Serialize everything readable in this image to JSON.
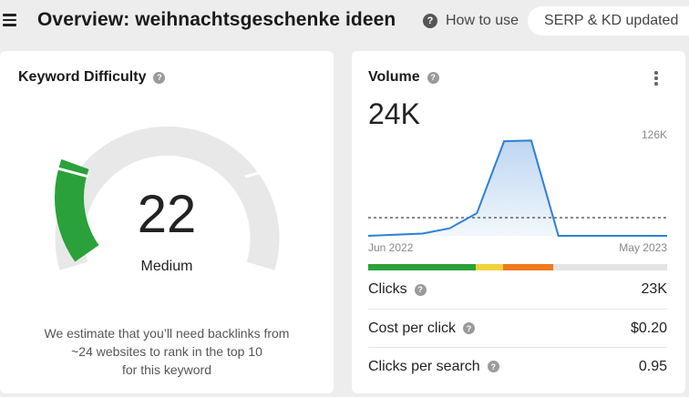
{
  "header": {
    "title": "Overview: weihnachtsgeschenke ideen",
    "how_to_use": "How to use",
    "serp_status": "SERP & KD updated"
  },
  "keyword_difficulty": {
    "title": "Keyword Difficulty",
    "value": "22",
    "label": "Medium",
    "note_line1": "We estimate that you’ll need backlinks from",
    "note_line2": "~24 websites to rank in the top 10",
    "note_line3": "for this keyword",
    "fill_fraction": 0.22,
    "colors": {
      "fill": "#2aa13a",
      "track": "#e8e8e8"
    }
  },
  "volume": {
    "title": "Volume",
    "value": "24K",
    "max_label": "126K",
    "x_start": "Jun 2022",
    "x_end": "May 2023",
    "chart_data": {
      "type": "area",
      "x": [
        "Jun 2022",
        "Jul 2022",
        "Aug 2022",
        "Sep 2022",
        "Oct 2022",
        "Nov 2022",
        "Dec 2022",
        "Jan 2023",
        "Feb 2023",
        "Mar 2023",
        "Apr 2023",
        "May 2023"
      ],
      "values": [
        0,
        1.5,
        3,
        10,
        30,
        125,
        126,
        0,
        0,
        0,
        0,
        0
      ],
      "average": 24,
      "ylim": [
        0,
        130
      ],
      "color": "#2f7fd6"
    },
    "intent_bar": [
      {
        "share": 0.36,
        "color": "#2aa13a"
      },
      {
        "share": 0.09,
        "color": "#f0d23a"
      },
      {
        "share": 0.17,
        "color": "#f07a1d"
      },
      {
        "share": 0.38,
        "color": "#e4e4e4"
      }
    ],
    "metrics": [
      {
        "label": "Clicks",
        "value": "23K"
      },
      {
        "label": "Cost per click",
        "value": "$0.20"
      },
      {
        "label": "Clicks per search",
        "value": "0.95"
      }
    ]
  },
  "icons": {
    "menu": "hamburger-icon",
    "help": "question-icon",
    "more": "kebab-icon"
  }
}
